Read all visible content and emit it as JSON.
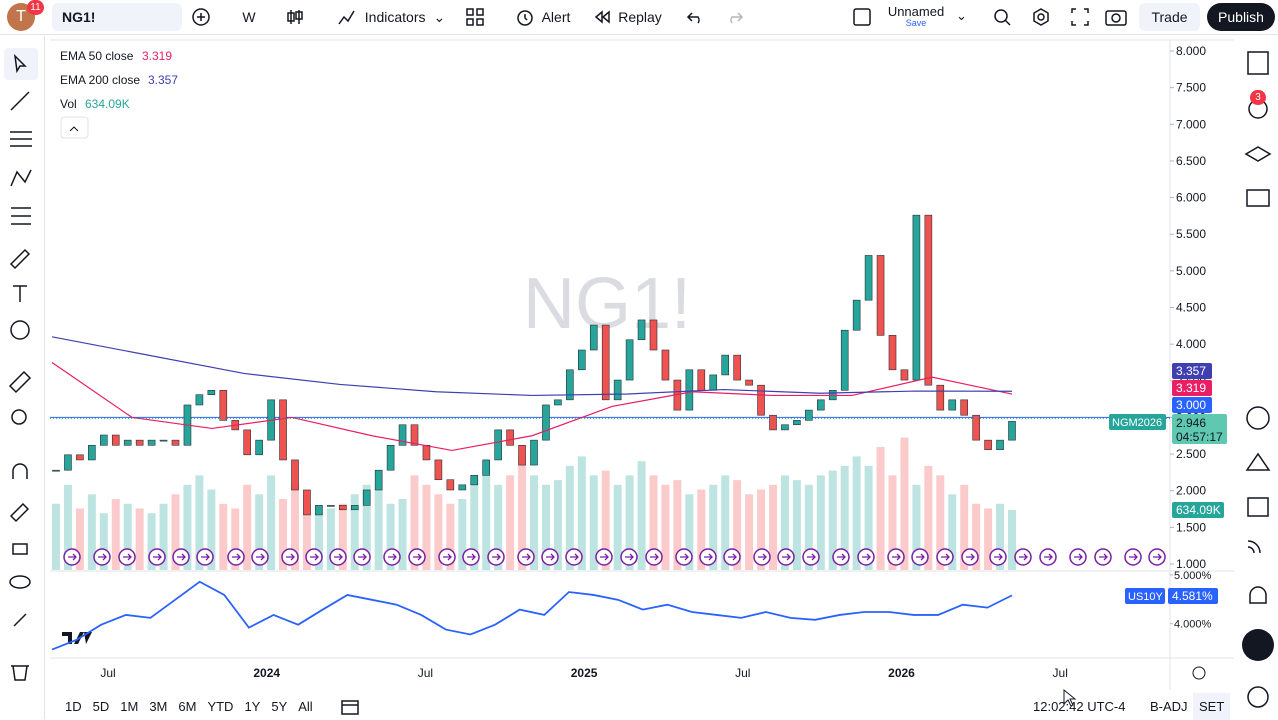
{
  "toolbar": {
    "avatar": "T",
    "badge": "11",
    "symbol": "NG1!",
    "interval": "W",
    "indicators": "Indicators",
    "alert": "Alert",
    "replay": "Replay",
    "layout_name": "Unnamed",
    "layout_status": "Save",
    "trade": "Trade",
    "publish": "Publish"
  },
  "right_toolbar": {
    "alerts_badge": "3"
  },
  "chart_data": {
    "type": "candlestick",
    "watermark": "NG1!",
    "symbol_tag": "NGM2026",
    "countdown": "04:57:17",
    "vol_label": "Vol",
    "vol_value_label": "634.09K",
    "closes": [
      2.28,
      2.49,
      2.42,
      2.62,
      2.76,
      2.62,
      2.69,
      2.62,
      2.69,
      2.69,
      2.62,
      3.17,
      3.31,
      3.37,
      2.96,
      2.83,
      2.49,
      2.69,
      3.24,
      2.42,
      2.01,
      1.67,
      1.8,
      1.8,
      1.74,
      1.8,
      2.01,
      2.28,
      2.62,
      2.9,
      2.62,
      2.42,
      2.15,
      2.01,
      2.08,
      2.21,
      2.42,
      2.83,
      2.62,
      2.35,
      2.69,
      3.17,
      3.24,
      3.65,
      3.92,
      4.26,
      3.24,
      3.51,
      4.06,
      4.33,
      3.92,
      3.51,
      3.1,
      3.65,
      3.37,
      3.58,
      3.85,
      3.51,
      3.44,
      3.03,
      2.83,
      2.9,
      2.96,
      3.1,
      3.24,
      3.37,
      4.19,
      4.6,
      5.21,
      4.12,
      3.65,
      3.51,
      5.76,
      3.44,
      3.1,
      3.24,
      3.03,
      2.69,
      2.56,
      2.69,
      2.946
    ],
    "up_color": "#26a69a",
    "down_color": "#ef5350",
    "volumes": [
      700,
      900,
      650,
      800,
      600,
      750,
      700,
      650,
      600,
      700,
      800,
      900,
      1000,
      850,
      700,
      650,
      900,
      800,
      1000,
      750,
      900,
      700,
      600,
      650,
      700,
      800,
      900,
      850,
      700,
      750,
      1000,
      900,
      800,
      700,
      750,
      950,
      1100,
      900,
      1000,
      1200,
      1000,
      900,
      950,
      1100,
      1200,
      1000,
      1050,
      900,
      1000,
      1150,
      1000,
      900,
      950,
      800,
      850,
      900,
      1000,
      950,
      800,
      850,
      900,
      1000,
      950,
      900,
      1000,
      1050,
      1100,
      1200,
      1100,
      1300,
      1000,
      1400,
      900,
      1100,
      1000,
      800,
      900,
      700,
      650,
      700,
      634.09
    ],
    "series": [
      {
        "name": "EMA 50 close",
        "color": "#e91e63",
        "values": [
          3.75,
          3.0,
          2.85,
          3.0,
          2.75,
          2.55,
          2.75,
          3.15,
          3.35,
          3.3,
          3.3,
          3.55,
          3.319
        ]
      },
      {
        "name": "EMA 200 close",
        "color": "#3f3fb0",
        "values": [
          4.1,
          3.85,
          3.6,
          3.45,
          3.35,
          3.3,
          3.32,
          3.38,
          3.33,
          3.36,
          3.357
        ]
      }
    ],
    "hline": {
      "value": 3,
      "label": "3.000",
      "color": "#2962ff"
    },
    "ylim": [
      1,
      8
    ],
    "yticks": [
      {
        "value": 8,
        "label": "8.000"
      },
      {
        "value": 7.5,
        "label": "7.500"
      },
      {
        "value": 7,
        "label": "7.000"
      },
      {
        "value": 6.5,
        "label": "6.500"
      },
      {
        "value": 6,
        "label": "6.000"
      },
      {
        "value": 5.5,
        "label": "5.500"
      },
      {
        "value": 5,
        "label": "5.000"
      },
      {
        "value": 4.5,
        "label": "4.500"
      },
      {
        "value": 4,
        "label": "4.000"
      },
      {
        "value": 3.5,
        "label": "3.500"
      },
      {
        "value": 3,
        "label": "3.000"
      },
      {
        "value": 2.5,
        "label": "2.500"
      },
      {
        "value": 2,
        "label": "2.000"
      },
      {
        "value": 1.5,
        "label": "1.500"
      },
      {
        "value": 1,
        "label": "1.000"
      }
    ],
    "x_labels": [
      "Jul",
      "2024",
      "Jul",
      "2025",
      "Jul",
      "2026",
      "Jul"
    ],
    "us10y": {
      "name": "US10Y",
      "color": "#2962ff",
      "value_label": "4.581%",
      "ylim": [
        3.4,
        5.06
      ],
      "yticks": [
        {
          "value": 5,
          "label": "5.000%"
        },
        {
          "value": 4,
          "label": "4.000%"
        }
      ],
      "values": [
        3.47,
        3.67,
        3.98,
        4.18,
        4.12,
        4.49,
        4.86,
        4.59,
        3.92,
        4.18,
        3.98,
        4.29,
        4.59,
        4.49,
        4.39,
        4.18,
        3.88,
        3.78,
        3.98,
        4.29,
        4.18,
        4.65,
        4.59,
        4.49,
        4.29,
        4.39,
        4.24,
        4.18,
        4.12,
        4.24,
        4.12,
        4.08,
        4.18,
        4.24,
        4.24,
        4.18,
        4.18,
        4.39,
        4.33,
        4.581
      ]
    }
  },
  "bottom_bar": {
    "ranges": [
      "1D",
      "5D",
      "1M",
      "3M",
      "6M",
      "YTD",
      "1Y",
      "5Y",
      "All"
    ],
    "clock": "12:02:42 UTC-4",
    "adj": "B-ADJ",
    "session": "SET"
  }
}
